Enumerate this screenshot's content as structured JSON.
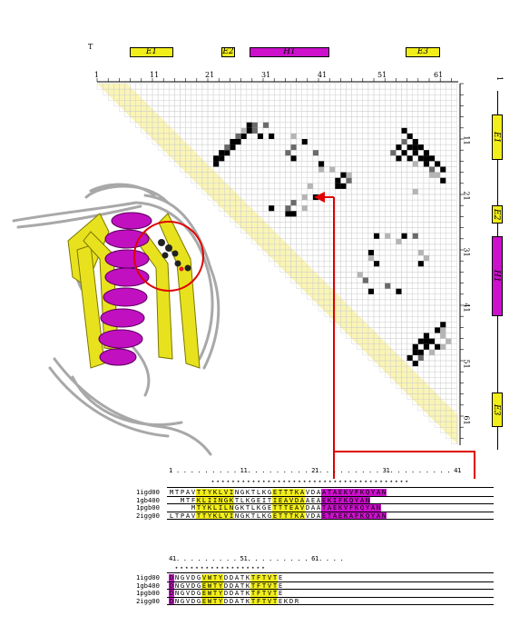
{
  "top_label": "T",
  "right_label": "1",
  "sse_top": [
    "E1",
    "E2",
    "H1",
    "E3"
  ],
  "sse_right": [
    "E1",
    "E2",
    "H1",
    "E3"
  ],
  "axis_top_ticks": [
    "1",
    "11",
    "21",
    "31",
    "41",
    "51",
    "61"
  ],
  "axis_right_ticks": [
    "11",
    "21",
    "31",
    "41",
    "51",
    "61"
  ],
  "colors": {
    "strand": "#f2ee1a",
    "helix": "#cc10cc",
    "contact_strong": "#000000",
    "contact_medium": "#6a6a6a",
    "contact_weak": "#b5b5b5",
    "grid": "#c8c8c8",
    "diagonal": "#fbf5b5",
    "arrow": "#e00000"
  },
  "alignment_block1": {
    "ruler": "1 . . . . . . . . . 11. . . . . . . . . 21. . . . . . . . . 31. . . . . . . . . 41",
    "stars": "★ ★ ★ ★ ★ ★ ★ ★ ★ ★ ★ ★ ★ ★ ★ ★ ★ ★ ★ ★ ★ ★ ★ ★ ★ ★ ★ ★ ★ ★ ★ ★ ★ ★ ★ ★ ★ ★ ★",
    "rows": [
      {
        "name": "1igd00",
        "seq": "MTPAVTTYKLVINGKTLKGETTTKAVDAATAEKVFKQYAN"
      },
      {
        "name": "1gb400",
        "seq": "  MTFKLIINGKTLKGEITIEAVDAAEAEKIFKQYAN"
      },
      {
        "name": "1pgb00",
        "seq": "    MTYKLILNGKTLKGETTTEAVDAATAEKVFKQYAN"
      },
      {
        "name": "2igg00",
        "seq": "LTPAVTTYKLVINGKTLKGETTTKAVDAETAEKAFKQYAN"
      }
    ]
  },
  "alignment_block2": {
    "ruler": "41. . . . . . . . . 51. . . . . . . . . 61. . . .",
    "stars": "★ ★ ★ ★ ★ ★ ★ ★ ★ ★ ★ ★ ★ ★ ★ ★ ★ ★",
    "rows": [
      {
        "name": "1igd00",
        "seq": "DNGVDGVWTYDDATKTFTVTE"
      },
      {
        "name": "1gb400",
        "seq": "DNGVDGEWTYDDATKTFTVTE"
      },
      {
        "name": "1pgb00",
        "seq": "DNGVDGEWTYDDATKTFTVTE"
      },
      {
        "name": "2igg00",
        "seq": "DNGVDGEWTYDDATKTFTVTEKDR"
      }
    ]
  }
}
